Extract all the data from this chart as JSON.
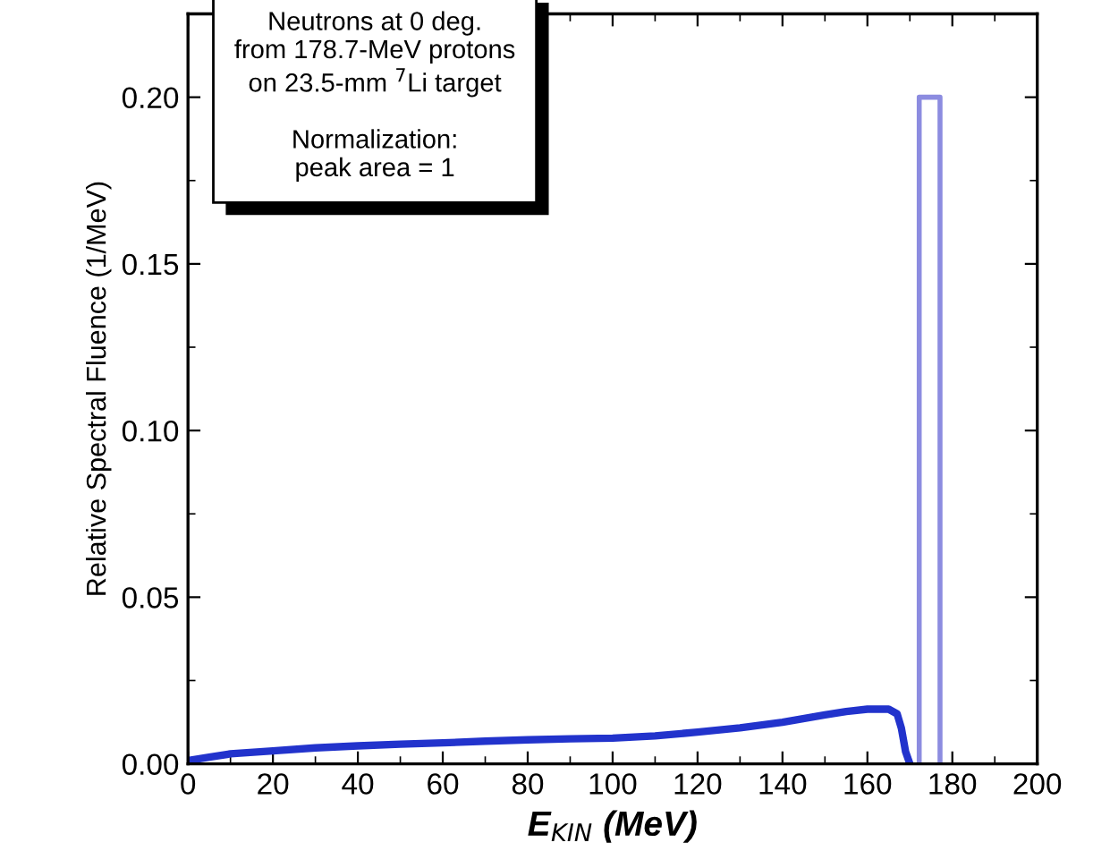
{
  "chart_data": {
    "type": "line",
    "xlabel": "E$_{KIN}$ (MeV)",
    "ylabel": "Relative Spectral Fluence (1/MeV)",
    "annotations": [
      "Neutrons at 0 deg.\nfrom 178.7-MeV protons\non 23.5-mm $^{7}$Li target\n\nNormalization:\npeak area = 1"
    ],
    "xlim": [
      0,
      200
    ],
    "ylim": [
      0,
      0.225
    ],
    "xticks": [
      0,
      20,
      40,
      60,
      80,
      100,
      120,
      140,
      160,
      180,
      200
    ],
    "yticks": [
      {
        "value": 0,
        "label": "0.00"
      },
      {
        "value": 0.05,
        "label": "0.05"
      },
      {
        "value": 0.1,
        "label": "0.10"
      },
      {
        "value": 0.15,
        "label": "0.15"
      },
      {
        "value": 0.2,
        "label": "0.20"
      }
    ],
    "grid": false,
    "legend": false,
    "marker": "none",
    "line_style": "solid",
    "series": [
      {
        "color": "#2233cc",
        "x": [
          0,
          5,
          10,
          20,
          30,
          40,
          50,
          60,
          70,
          80,
          90,
          100,
          110,
          120,
          130,
          140,
          150,
          155,
          160,
          165,
          167,
          168,
          169,
          170
        ],
        "values": [
          0.001,
          0.002,
          0.003,
          0.0039,
          0.0048,
          0.0054,
          0.0059,
          0.0063,
          0.0068,
          0.0072,
          0.0075,
          0.0077,
          0.0084,
          0.0095,
          0.0108,
          0.0125,
          0.0147,
          0.0157,
          0.0164,
          0.0164,
          0.015,
          0.0107,
          0.0036,
          0
        ]
      },
      {
        "color": "#8c8ce0",
        "x": [
          172.2,
          172.2,
          177.1,
          177.1
        ],
        "values": [
          0,
          0.2,
          0.2,
          0
        ]
      }
    ]
  }
}
